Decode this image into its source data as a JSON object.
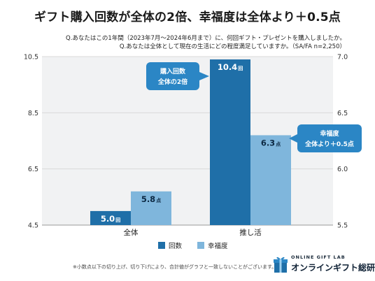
{
  "title": "ギフト購入回数が全体の2倍、幸福度は全体より＋0.5点",
  "question1": "Q.あなたはこの1年間（2023年7月～2024年6月まで）に、何回ギフト・プレゼントを購入しましたか。",
  "question2": "Q.あなたは全体として現在の生活にどの程度満足していますか。（SA/FA n=2,250）",
  "footnote": "※小数点以下の切り上げ、切り下げにより、合計値がグラフと一致しないことがございます。",
  "logo": {
    "top": "ONLINE GIFT LAB",
    "main": "オンラインギフト総研"
  },
  "colors": {
    "count": "#1f6fa8",
    "happiness": "#7fb6dc",
    "grid": "#d9d9d9",
    "bg": "#f1f2f3",
    "callout": "#2b86c5"
  },
  "callouts": {
    "count": [
      "購入回数",
      "全体の2倍"
    ],
    "happiness": [
      "幸福度",
      "全体より＋0.5点"
    ]
  },
  "chart_data": {
    "type": "bar",
    "categories": [
      "全体",
      "推し活"
    ],
    "series": [
      {
        "name": "回数",
        "axis": "left",
        "values": [
          5.0,
          10.4
        ],
        "value_labels": [
          "5.0",
          "10.4"
        ],
        "unit": "回"
      },
      {
        "name": "幸福度",
        "axis": "right",
        "values": [
          5.8,
          6.3
        ],
        "value_labels": [
          "5.8",
          "6.3"
        ],
        "unit": "点"
      }
    ],
    "left_axis": {
      "range": [
        4.5,
        10.5
      ],
      "ticks": [
        "4.5",
        "6.5",
        "8.5",
        "10.5"
      ]
    },
    "right_axis": {
      "range": [
        5.5,
        7.0
      ],
      "ticks": [
        "5.5",
        "6.0",
        "6.5",
        "7.0"
      ]
    },
    "grid": true,
    "legend": "bottom-center"
  }
}
